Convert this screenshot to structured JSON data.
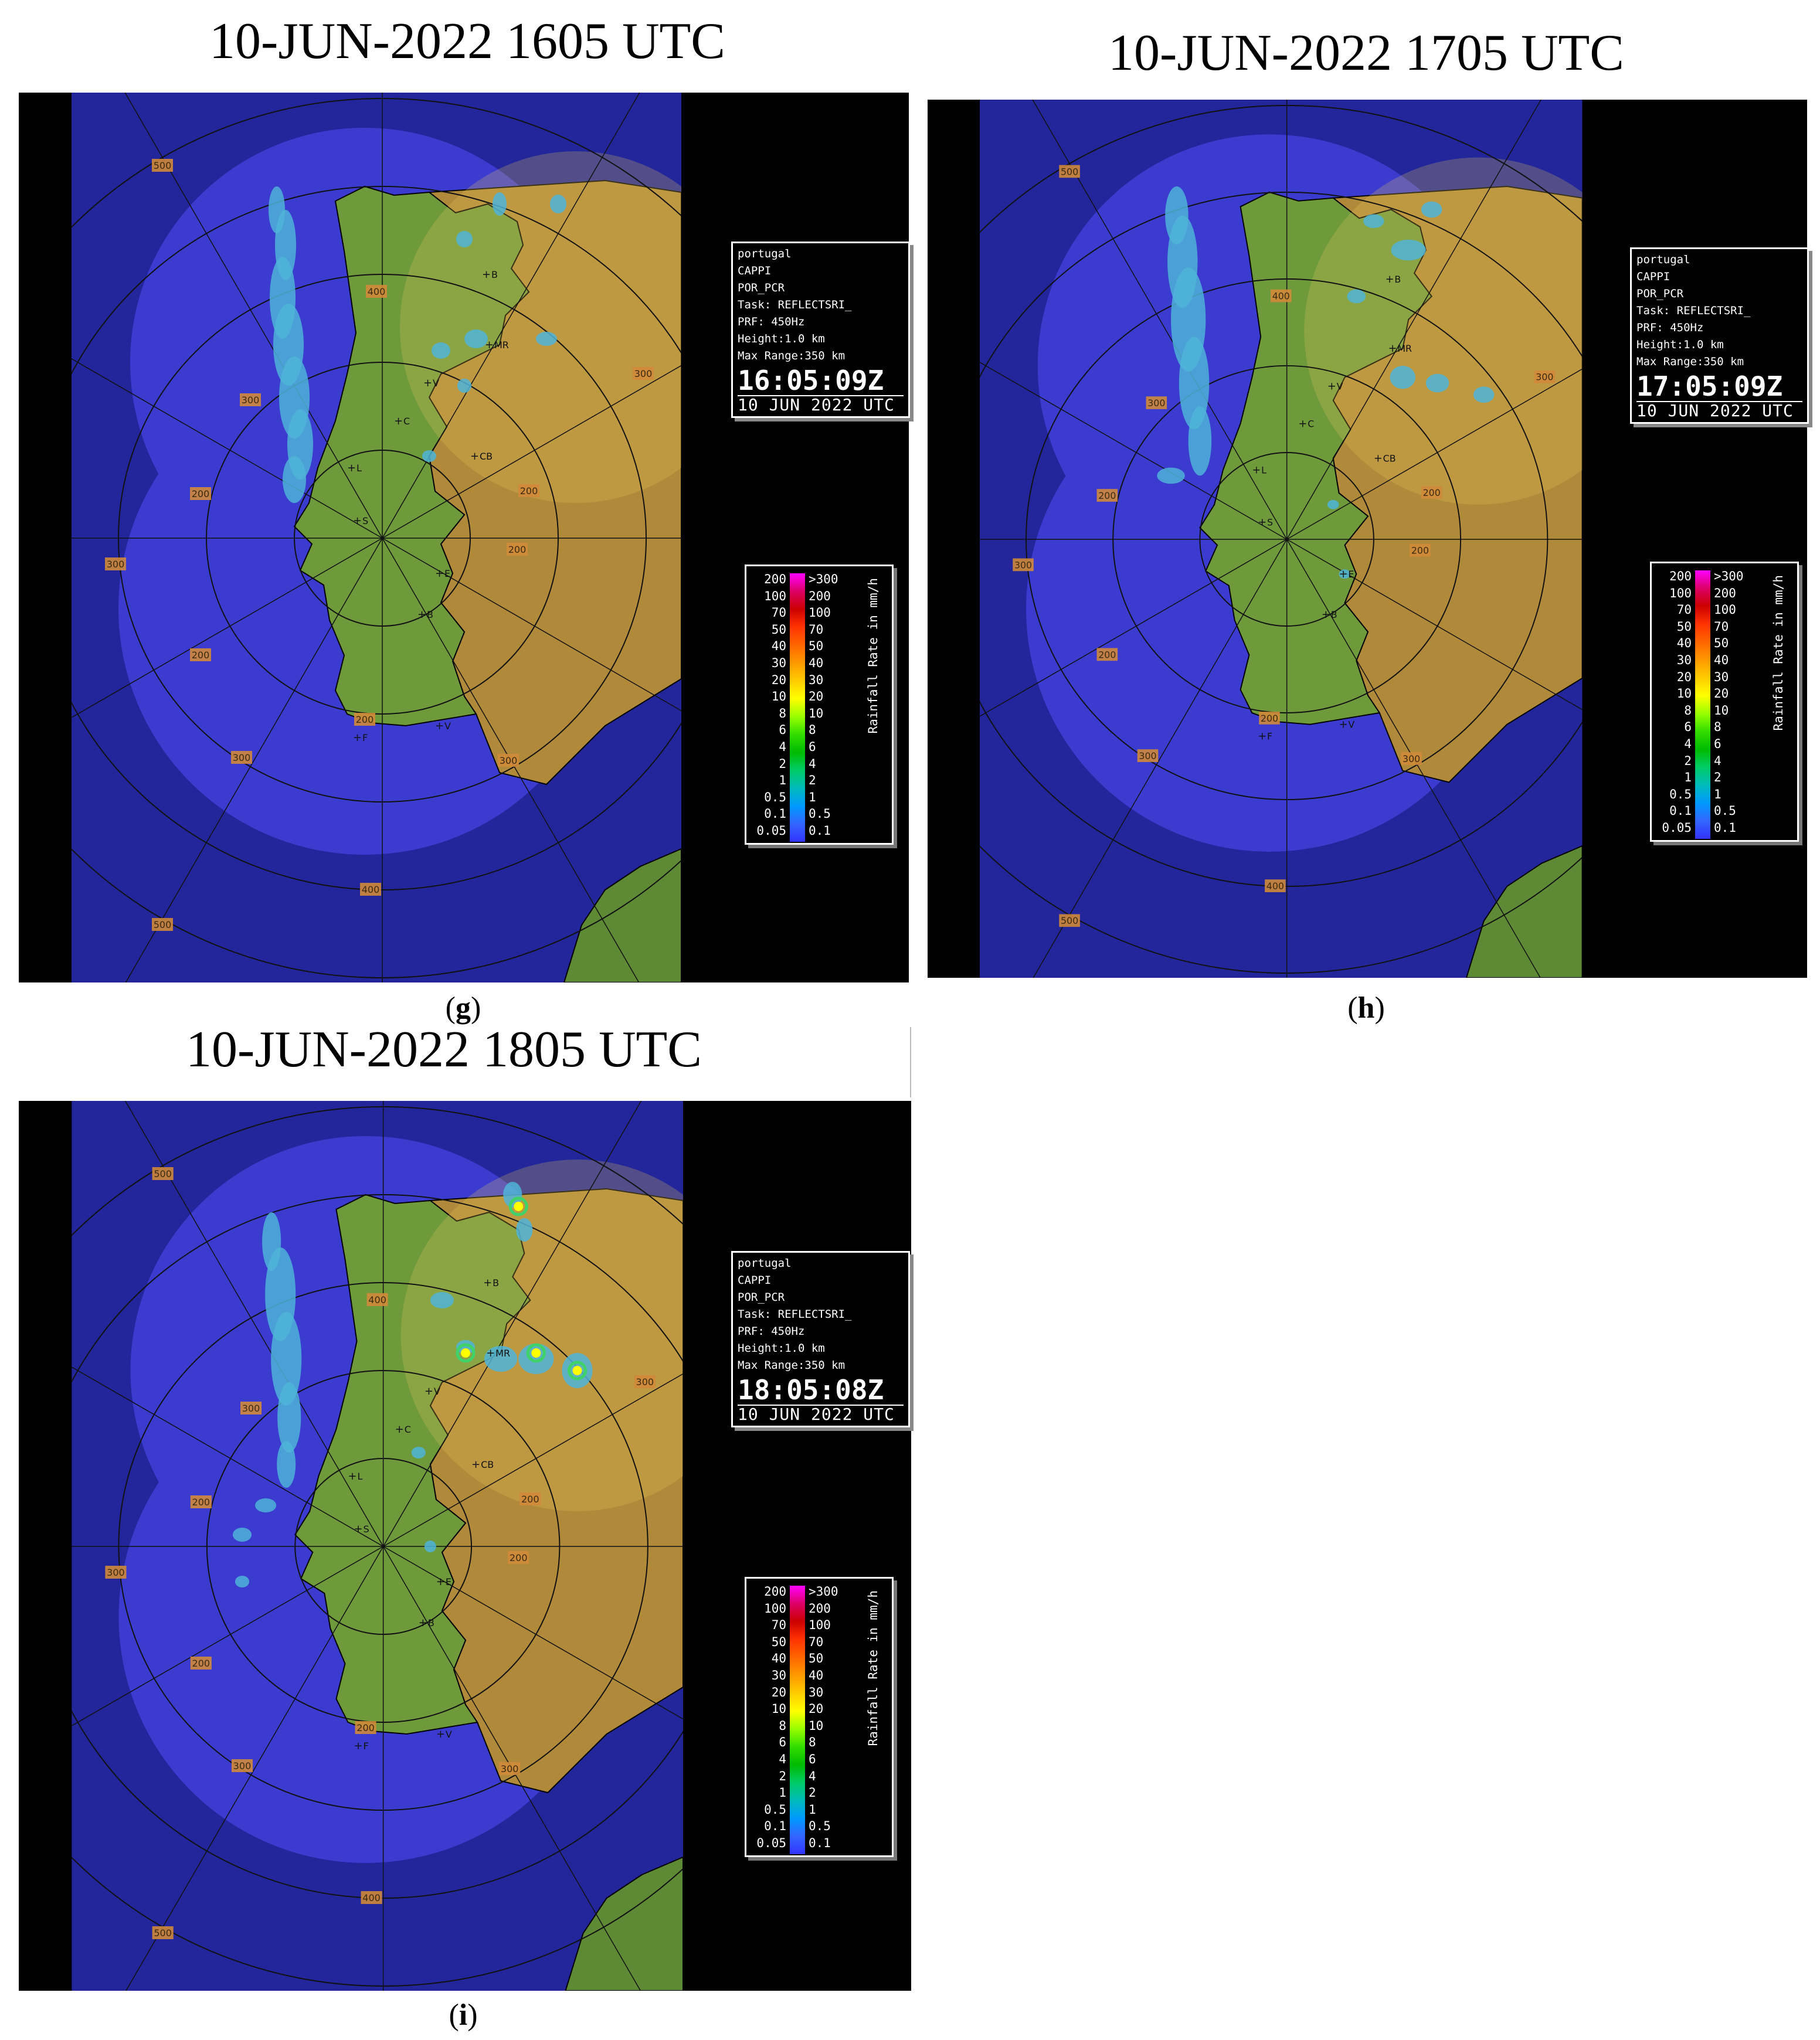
{
  "panels": [
    {
      "id": "g",
      "title": "10-JUN-2022 1605 UTC",
      "caption_letter": "g",
      "info": {
        "lines": [
          "portugal",
          "CAPPI",
          "POR_PCR",
          "Task: REFLECTSRI_",
          "PRF: 450Hz",
          "Height:1.0 km",
          "Max Range:350 km"
        ],
        "time": "16:05:09Z",
        "date": "10 JUN 2022 UTC"
      }
    },
    {
      "id": "h",
      "title": "10-JUN-2022 1705 UTC",
      "caption_letter": "h",
      "info": {
        "lines": [
          "portugal",
          "CAPPI",
          "POR_PCR",
          "Task: REFLECTSRI_",
          "PRF: 450Hz",
          "Height:1.0 km",
          "Max Range:350 km"
        ],
        "time": "17:05:09Z",
        "date": "10 JUN 2022 UTC"
      }
    },
    {
      "id": "i",
      "title": "10-JUN-2022 1805 UTC",
      "caption_letter": "i",
      "info": {
        "lines": [
          "portugal",
          "CAPPI",
          "POR_PCR",
          "Task: REFLECTSRI_",
          "PRF: 450Hz",
          "Height:1.0 km",
          "Max Range:350 km"
        ],
        "time": "18:05:08Z",
        "date": "10 JUN 2022 UTC"
      }
    }
  ],
  "legend": {
    "left_values": [
      "200",
      "100",
      "70",
      "50",
      "40",
      "30",
      "20",
      "10",
      "8",
      "6",
      "4",
      "2",
      "1",
      "0.5",
      "0.1",
      "0.05"
    ],
    "right_values": [
      ">300",
      "200",
      "100",
      "70",
      "50",
      "40",
      "30",
      "20",
      "10",
      "8",
      "6",
      "4",
      "2",
      "1",
      "0.5",
      "0.1"
    ],
    "colors": [
      "#ff00ff",
      "#dd0066",
      "#cc0000",
      "#ff3300",
      "#ff6600",
      "#ff9900",
      "#ffcc00",
      "#ffff00",
      "#99ff00",
      "#33dd00",
      "#00bb00",
      "#00cc66",
      "#00bbbb",
      "#0099ff",
      "#3366ff",
      "#3333ff"
    ],
    "unit": "Rainfall Rate in mm/h"
  },
  "map_labels": {
    "range_labels": [
      "500",
      "400",
      "300",
      "200",
      "300",
      "200",
      "300",
      "200",
      "300",
      "200",
      "400",
      "500",
      "300",
      "200"
    ],
    "cities": [
      "B",
      "MR",
      "V",
      "C",
      "CB",
      "L",
      "S",
      "E",
      "B",
      "F",
      "V"
    ]
  },
  "colors": {
    "ocean": "#2a2ab8",
    "ocean_outside": "#22269a",
    "land": "#6e9a3c",
    "land_high": "#b08a3a",
    "radar_circle": "#3b3bd0",
    "rain_light": "#4fb4d8",
    "rain_med": "#3fd26a"
  }
}
